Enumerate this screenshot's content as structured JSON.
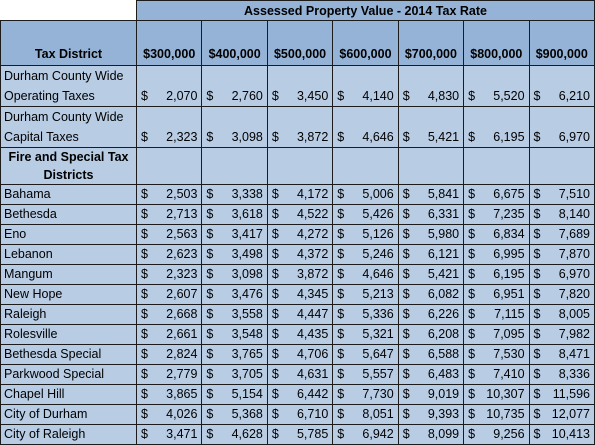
{
  "table": {
    "title": "Assessed Property Value - 2014 Tax Rate",
    "district_header": "Tax District",
    "columns": [
      "$300,000",
      "$400,000",
      "$500,000",
      "$600,000",
      "$700,000",
      "$800,000",
      "$900,000"
    ],
    "currency_symbol": "$",
    "county_rows": [
      {
        "name": "Durham County Wide Operating Taxes",
        "values": [
          "2,070",
          "2,760",
          "3,450",
          "4,140",
          "4,830",
          "5,520",
          "6,210"
        ]
      },
      {
        "name": "Durham County Wide Capital Taxes",
        "values": [
          "2,323",
          "3,098",
          "3,872",
          "4,646",
          "5,421",
          "6,195",
          "6,970"
        ]
      }
    ],
    "section_label": "Fire and Special Tax Districts",
    "district_rows": [
      {
        "name": "Bahama",
        "values": [
          "2,503",
          "3,338",
          "4,172",
          "5,006",
          "5,841",
          "6,675",
          "7,510"
        ]
      },
      {
        "name": "Bethesda",
        "values": [
          "2,713",
          "3,618",
          "4,522",
          "5,426",
          "6,331",
          "7,235",
          "8,140"
        ]
      },
      {
        "name": "Eno",
        "values": [
          "2,563",
          "3,417",
          "4,272",
          "5,126",
          "5,980",
          "6,834",
          "7,689"
        ]
      },
      {
        "name": "Lebanon",
        "values": [
          "2,623",
          "3,498",
          "4,372",
          "5,246",
          "6,121",
          "6,995",
          "7,870"
        ]
      },
      {
        "name": "Mangum",
        "values": [
          "2,323",
          "3,098",
          "3,872",
          "4,646",
          "5,421",
          "6,195",
          "6,970"
        ]
      },
      {
        "name": "New Hope",
        "values": [
          "2,607",
          "3,476",
          "4,345",
          "5,213",
          "6,082",
          "6,951",
          "7,820"
        ]
      },
      {
        "name": "Raleigh",
        "values": [
          "2,668",
          "3,558",
          "4,447",
          "5,336",
          "6,226",
          "7,115",
          "8,005"
        ]
      },
      {
        "name": "Rolesville",
        "values": [
          "2,661",
          "3,548",
          "4,435",
          "5,321",
          "6,208",
          "7,095",
          "7,982"
        ]
      },
      {
        "name": "Bethesda Special",
        "values": [
          "2,824",
          "3,765",
          "4,706",
          "5,647",
          "6,588",
          "7,530",
          "8,471"
        ]
      },
      {
        "name": "Parkwood Special",
        "values": [
          "2,779",
          "3,705",
          "4,631",
          "5,557",
          "6,483",
          "7,410",
          "8,336"
        ]
      },
      {
        "name": "Chapel Hill",
        "values": [
          "3,865",
          "5,154",
          "6,442",
          "7,730",
          "9,019",
          "10,307",
          "11,596"
        ]
      },
      {
        "name": "City of Durham",
        "values": [
          "4,026",
          "5,368",
          "6,710",
          "8,051",
          "9,393",
          "10,735",
          "12,077"
        ]
      },
      {
        "name": "City of Raleigh",
        "values": [
          "3,471",
          "4,628",
          "5,785",
          "6,942",
          "8,099",
          "9,256",
          "10,413"
        ]
      }
    ]
  },
  "colors": {
    "header_fill": "#95b3d7",
    "body_fill": "#b8cce4",
    "border": "#1c1c1c"
  }
}
